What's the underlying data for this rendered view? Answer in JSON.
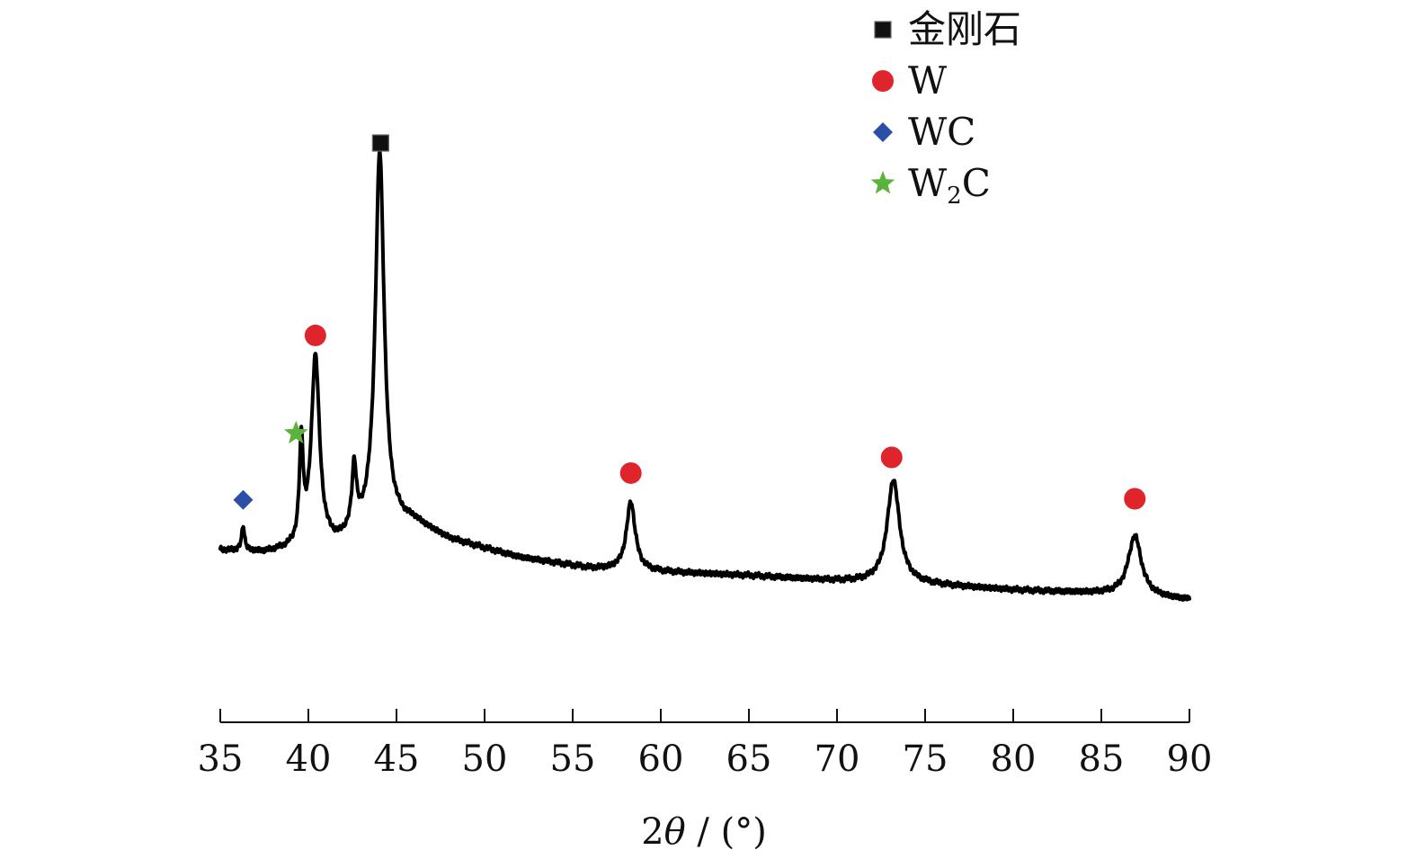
{
  "chart_data": {
    "type": "line",
    "title": "",
    "xlabel": "2θ / (°)",
    "ylabel": "",
    "xlim": [
      35,
      90
    ],
    "x_ticks": [
      35,
      40,
      45,
      50,
      55,
      60,
      65,
      70,
      75,
      80,
      85,
      90
    ],
    "x_tick_labels": [
      "35",
      "40",
      "45",
      "50",
      "55",
      "60",
      "65",
      "70",
      "75",
      "80",
      "85",
      "90"
    ],
    "y_axis_visible": false,
    "grid": false,
    "legend_position": "top-right",
    "legend": [
      {
        "label": "金刚石",
        "marker": "square",
        "color": "#111111"
      },
      {
        "label": "W",
        "marker": "circle",
        "color": "#e0242b"
      },
      {
        "label": "WC",
        "marker": "diamond",
        "color": "#2b4fa6"
      },
      {
        "label": "W2C",
        "marker": "star",
        "color": "#5cb33c"
      }
    ],
    "series": [
      {
        "color": "#000000",
        "baseline": [
          [
            35.0,
            612
          ],
          [
            37.5,
            615
          ],
          [
            41.5,
            608
          ],
          [
            44.0,
            585
          ],
          [
            46.0,
            582
          ],
          [
            48.0,
            600
          ],
          [
            52.0,
            620
          ],
          [
            56.0,
            632
          ],
          [
            60.0,
            636
          ],
          [
            65.0,
            640
          ],
          [
            70.0,
            646
          ],
          [
            75.0,
            650
          ],
          [
            80.0,
            656
          ],
          [
            85.0,
            660
          ],
          [
            90.0,
            667
          ]
        ],
        "peaks": [
          {
            "x": 36.3,
            "height": 28,
            "width": 0.1
          },
          {
            "x": 39.6,
            "height": 110,
            "width": 0.13
          },
          {
            "x": 40.4,
            "height": 211,
            "width": 0.28
          },
          {
            "x": 42.6,
            "height": 70,
            "width": 0.15
          },
          {
            "x": 44.05,
            "height": 415,
            "width": 0.3
          },
          {
            "x": 58.3,
            "height": 76,
            "width": 0.3
          },
          {
            "x": 73.2,
            "height": 115,
            "width": 0.42
          },
          {
            "x": 86.9,
            "height": 67,
            "width": 0.45
          }
        ]
      }
    ],
    "phase_markers": [
      {
        "phase": "WC",
        "marker": "diamond",
        "color": "#2b4fa6",
        "x": 36.3
      },
      {
        "phase": "W2C",
        "marker": "star",
        "color": "#5cb33c",
        "x": 39.3
      },
      {
        "phase": "W",
        "marker": "circle",
        "color": "#e0242b",
        "x": 40.4
      },
      {
        "phase": "金刚石",
        "marker": "square",
        "color": "#111111",
        "x": 44.1
      },
      {
        "phase": "W",
        "marker": "circle",
        "color": "#e0242b",
        "x": 58.3
      },
      {
        "phase": "W",
        "marker": "circle",
        "color": "#e0242b",
        "x": 73.1
      },
      {
        "phase": "W",
        "marker": "circle",
        "color": "#e0242b",
        "x": 86.9
      }
    ]
  }
}
